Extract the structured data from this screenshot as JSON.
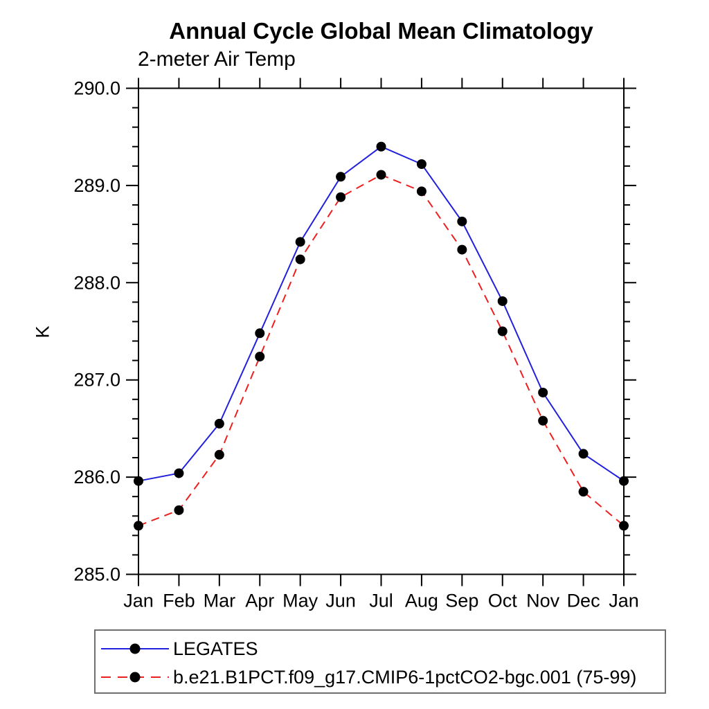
{
  "title": "Annual Cycle Global Mean Climatology",
  "subtitle": "2-meter Air Temp",
  "chart_data": {
    "type": "line",
    "categories": [
      "Jan",
      "Feb",
      "Mar",
      "Apr",
      "May",
      "Jun",
      "Jul",
      "Aug",
      "Sep",
      "Oct",
      "Nov",
      "Dec",
      "Jan"
    ],
    "series": [
      {
        "name": "LEGATES",
        "color": "#2020dd",
        "line_style": "solid",
        "marker": "filled-circle",
        "marker_color": "#000000",
        "values": [
          285.96,
          286.04,
          286.55,
          287.48,
          288.42,
          289.09,
          289.4,
          289.22,
          288.63,
          287.81,
          286.87,
          286.24,
          285.96
        ]
      },
      {
        "name": "b.e21.B1PCT.f09_g17.CMIP6-1pctCO2-bgc.001 (75-99)",
        "color": "#ef1f1f",
        "line_style": "dashed",
        "marker": "filled-circle",
        "marker_color": "#000000",
        "values": [
          285.5,
          285.66,
          286.23,
          287.24,
          288.24,
          288.88,
          289.11,
          288.94,
          288.34,
          287.5,
          286.58,
          285.85,
          285.5
        ]
      }
    ],
    "xlabel": "",
    "ylabel": "K",
    "ylim": [
      285.0,
      290.0
    ],
    "y_major_step": 1.0,
    "y_minor_step": 0.2,
    "y_tick_labels": [
      "285.0",
      "286.0",
      "287.0",
      "288.0",
      "289.0",
      "290.0"
    ],
    "grid": false,
    "legend_position": "bottom-left",
    "axis_color": "#000000"
  }
}
